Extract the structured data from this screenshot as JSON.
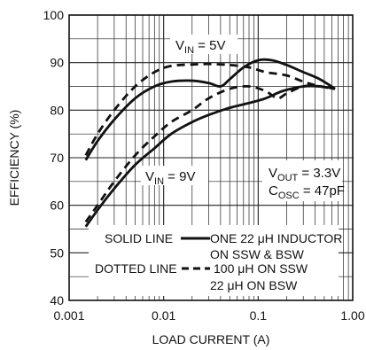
{
  "chart_data": {
    "type": "line",
    "xlabel": "LOAD CURRENT (A)",
    "ylabel": "EFFICIENCY (%)",
    "x_scale": "log",
    "xlim": [
      0.001,
      1.0
    ],
    "ylim": [
      40,
      100
    ],
    "x_ticks": [
      0.001,
      0.01,
      0.1,
      1.0
    ],
    "x_tick_labels": [
      "0.001",
      "0.01",
      "0.1",
      "1.00"
    ],
    "y_ticks": [
      40,
      50,
      60,
      70,
      80,
      90,
      100
    ],
    "y_tick_labels": [
      "40",
      "50",
      "60",
      "70",
      "80",
      "90",
      "100"
    ],
    "grid": true,
    "series": [
      {
        "style": "solid",
        "points": [
          [
            0.0015,
            69.5
          ],
          [
            0.002,
            73.5
          ],
          [
            0.003,
            78
          ],
          [
            0.005,
            82.5
          ],
          [
            0.008,
            85
          ],
          [
            0.012,
            86
          ],
          [
            0.02,
            86.2
          ],
          [
            0.03,
            85.7
          ],
          [
            0.04,
            85
          ],
          [
            0.05,
            86.5
          ],
          [
            0.07,
            89
          ],
          [
            0.1,
            90.5
          ],
          [
            0.14,
            90.5
          ],
          [
            0.2,
            89.5
          ],
          [
            0.3,
            88
          ],
          [
            0.45,
            86.5
          ],
          [
            0.65,
            84.5
          ]
        ]
      },
      {
        "style": "dashed",
        "points": [
          [
            0.0015,
            70.5
          ],
          [
            0.002,
            75
          ],
          [
            0.003,
            80
          ],
          [
            0.005,
            85
          ],
          [
            0.008,
            88
          ],
          [
            0.012,
            89.3
          ],
          [
            0.02,
            89.6
          ],
          [
            0.03,
            89.7
          ],
          [
            0.05,
            89.5
          ],
          [
            0.08,
            89
          ],
          [
            0.12,
            88
          ],
          [
            0.2,
            87.3
          ],
          [
            0.3,
            86
          ],
          [
            0.45,
            85
          ],
          [
            0.65,
            84.5
          ]
        ]
      },
      {
        "style": "solid",
        "points": [
          [
            0.0015,
            55.5
          ],
          [
            0.002,
            59
          ],
          [
            0.003,
            63.5
          ],
          [
            0.005,
            68.5
          ],
          [
            0.008,
            72
          ],
          [
            0.012,
            75
          ],
          [
            0.02,
            77.5
          ],
          [
            0.03,
            79
          ],
          [
            0.05,
            80.5
          ],
          [
            0.08,
            81.5
          ],
          [
            0.12,
            82.5
          ],
          [
            0.18,
            84
          ],
          [
            0.3,
            85
          ],
          [
            0.45,
            85
          ],
          [
            0.65,
            84.5
          ]
        ]
      },
      {
        "style": "dashed",
        "points": [
          [
            0.0015,
            56.5
          ],
          [
            0.002,
            60
          ],
          [
            0.003,
            65
          ],
          [
            0.005,
            70.5
          ],
          [
            0.008,
            74.5
          ],
          [
            0.012,
            77.5
          ],
          [
            0.02,
            80
          ],
          [
            0.03,
            82.5
          ],
          [
            0.05,
            84.5
          ],
          [
            0.08,
            85
          ],
          [
            0.12,
            84
          ],
          [
            0.16,
            82.5
          ],
          [
            0.2,
            83.5
          ],
          [
            0.3,
            85
          ],
          [
            0.45,
            85
          ],
          [
            0.65,
            84.5
          ]
        ]
      }
    ],
    "annotations": {
      "vin5_main": "V",
      "vin5_sub": "IN",
      "vin5_rest": " = 5V",
      "vin9_main": "V",
      "vin9_sub": "IN",
      "vin9_rest": " = 9V",
      "vout_main": "V",
      "vout_sub": "OUT",
      "vout_rest": " = 3.3V",
      "cosc_main": "C",
      "cosc_sub": "OSC",
      "cosc_rest": " = 47pF",
      "solid_label": "SOLID LINE",
      "solid_desc_1": "ONE 22  μH INDUCTOR",
      "solid_desc_2": "ON SSW & BSW",
      "dotted_label": "DOTTED LINE",
      "dotted_desc_1": "100  μH ON SSW",
      "dotted_desc_2": "22  μH ON BSW"
    }
  }
}
